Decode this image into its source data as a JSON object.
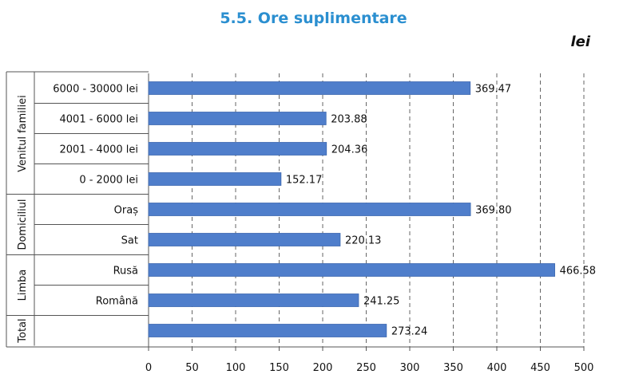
{
  "colors": {
    "title": "#2b8fd0",
    "bar": "#4f7ecb",
    "bar_stroke": "#3d68b0",
    "grid": "#666666",
    "frame": "#555555"
  },
  "title": "5.5. Ore suplimentare",
  "unit_label": "lei",
  "chart_data": {
    "type": "bar",
    "orientation": "horizontal",
    "title": "5.5. Ore suplimentare",
    "xlim": [
      0,
      500
    ],
    "xticks": [
      0,
      50,
      100,
      150,
      200,
      250,
      300,
      350,
      400,
      450,
      500
    ],
    "grid": "vertical dashed",
    "groups": [
      {
        "name": "Venitul familiei",
        "categories": [
          "6000 - 30000 lei",
          "4001 - 6000 lei",
          "2001 - 4000 lei",
          "0 - 2000 lei"
        ],
        "values": [
          369.47,
          203.88,
          204.36,
          152.17
        ],
        "value_labels": [
          "369.47",
          "203.88",
          "204.36",
          "152.17"
        ]
      },
      {
        "name": "Domiciliul",
        "categories": [
          "Oraș",
          "Sat"
        ],
        "values": [
          369.8,
          220.13
        ],
        "value_labels": [
          "369.80",
          "220.13"
        ]
      },
      {
        "name": "Limba",
        "categories": [
          "Rusă",
          "Română"
        ],
        "values": [
          466.58,
          241.25
        ],
        "value_labels": [
          "466.58",
          "241.25"
        ]
      },
      {
        "name": "Total",
        "categories": [
          ""
        ],
        "values": [
          273.24
        ],
        "value_labels": [
          "273.24"
        ]
      }
    ]
  }
}
